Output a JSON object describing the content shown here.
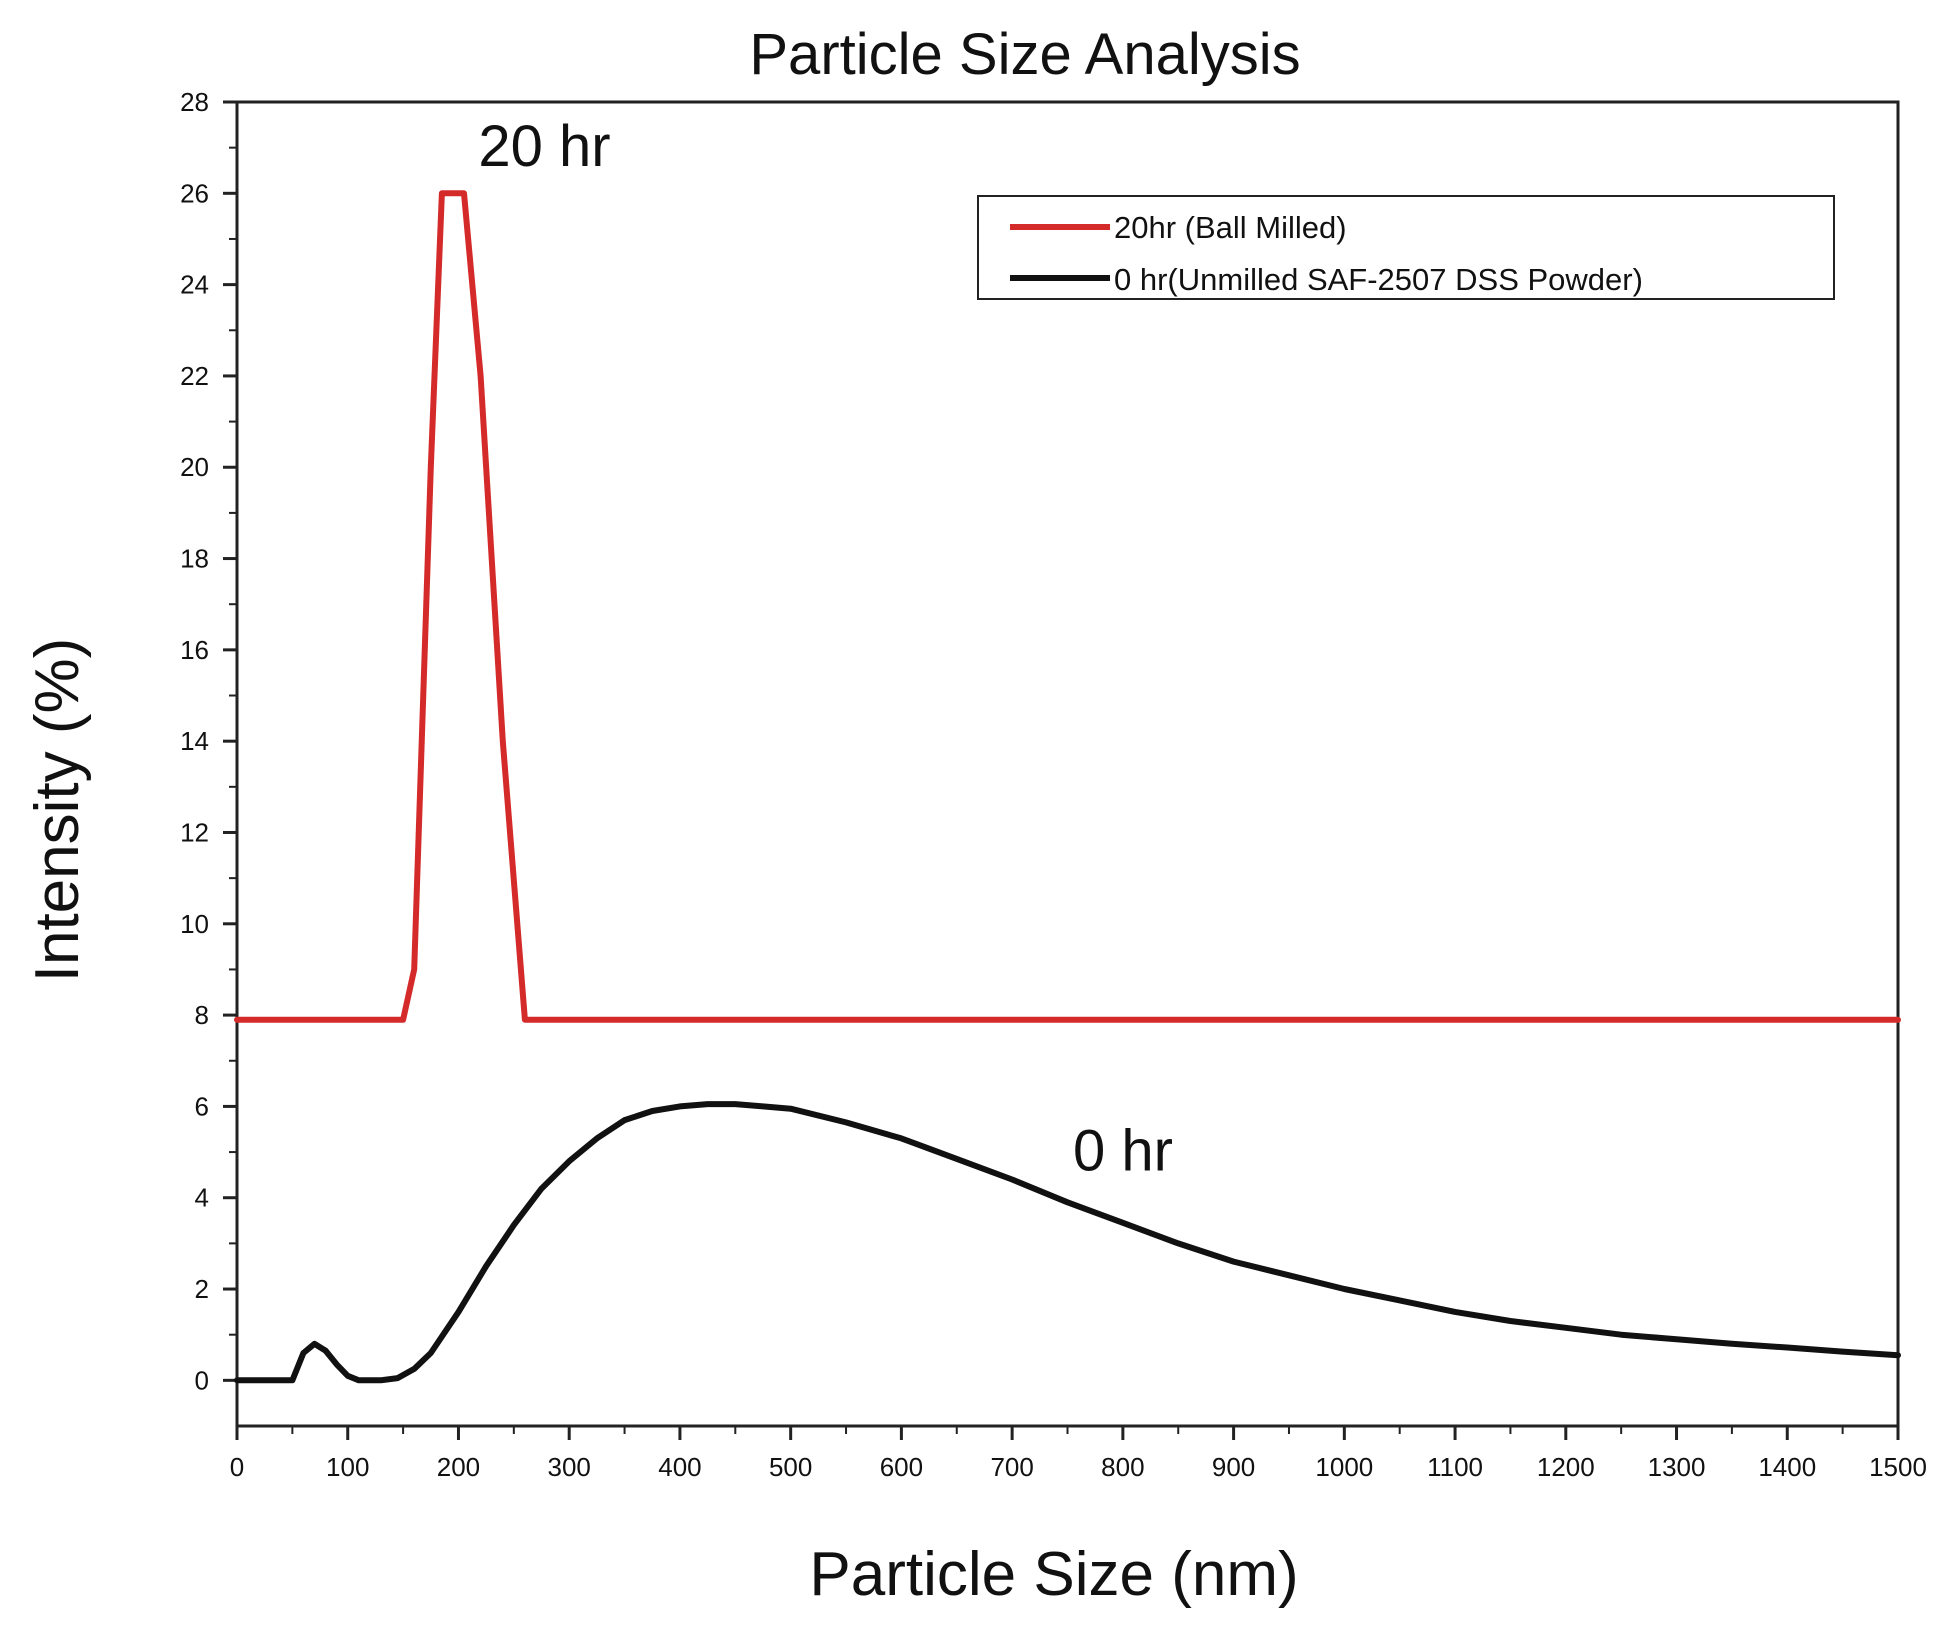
{
  "chart_data": {
    "type": "line",
    "title": "Particle Size Analysis",
    "xlabel": "Particle Size (nm)",
    "ylabel": "Intensity (%)",
    "xlim": [
      0,
      1500
    ],
    "ylim": [
      -1,
      28
    ],
    "xticks": [
      0,
      100,
      200,
      300,
      400,
      500,
      600,
      700,
      800,
      900,
      1000,
      1100,
      1200,
      1300,
      1400,
      1500
    ],
    "yticks": [
      0,
      2,
      4,
      6,
      8,
      10,
      12,
      14,
      16,
      18,
      20,
      22,
      24,
      26,
      28
    ],
    "legend_position": "top-right",
    "series": [
      {
        "name": "20hr (Ball Milled)",
        "color": "#d42a2a",
        "x": [
          0,
          150,
          160,
          175,
          185,
          195,
          205,
          220,
          240,
          260,
          1500
        ],
        "y": [
          7.9,
          7.9,
          9,
          20,
          26,
          26,
          26,
          22,
          14,
          7.9,
          7.9
        ]
      },
      {
        "name": "0 hr(Unmilled SAF-2507 DSS Powder)",
        "color": "#111111",
        "x": [
          0,
          50,
          55,
          60,
          70,
          80,
          90,
          100,
          110,
          120,
          130,
          145,
          160,
          175,
          200,
          225,
          250,
          275,
          300,
          325,
          350,
          375,
          400,
          425,
          450,
          475,
          500,
          550,
          600,
          650,
          700,
          750,
          800,
          850,
          900,
          950,
          1000,
          1050,
          1100,
          1150,
          1200,
          1250,
          1300,
          1350,
          1400,
          1450,
          1500
        ],
        "y": [
          0,
          0,
          0.3,
          0.6,
          0.8,
          0.65,
          0.35,
          0.1,
          0,
          0,
          0,
          0.05,
          0.25,
          0.6,
          1.5,
          2.5,
          3.4,
          4.2,
          4.8,
          5.3,
          5.7,
          5.9,
          6.0,
          6.05,
          6.05,
          6.0,
          5.95,
          5.65,
          5.3,
          4.85,
          4.4,
          3.9,
          3.45,
          3.0,
          2.6,
          2.3,
          2.0,
          1.75,
          1.5,
          1.3,
          1.15,
          1.0,
          0.9,
          0.8,
          0.72,
          0.63,
          0.55
        ]
      }
    ],
    "annotations": [
      {
        "text": "20 hr",
        "x": 218,
        "y": 26.6
      },
      {
        "text": "0 hr",
        "x": 755,
        "y": 4.6
      }
    ]
  }
}
